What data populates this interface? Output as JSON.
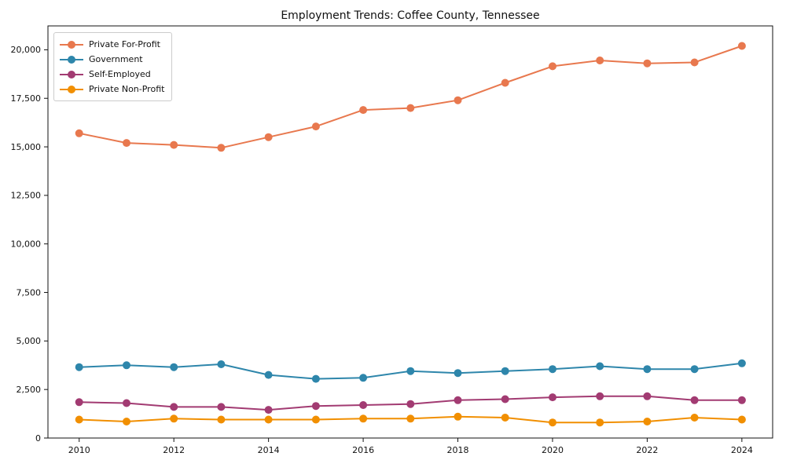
{
  "figure": {
    "title": "Employment Trends: Coffee County, Tennessee"
  },
  "chart_data": {
    "type": "line",
    "title": "Employment Trends: Coffee County, Tennessee",
    "xlabel": "",
    "ylabel": "",
    "grid": false,
    "legend_position": "upper-left",
    "marker": "circle",
    "x": [
      2010,
      2011,
      2012,
      2013,
      2014,
      2015,
      2016,
      2017,
      2018,
      2019,
      2020,
      2021,
      2022,
      2023,
      2024
    ],
    "x_ticks": [
      2010,
      2012,
      2014,
      2016,
      2018,
      2020,
      2022,
      2024
    ],
    "x_tick_labels": [
      "2010",
      "2012",
      "2014",
      "2016",
      "2018",
      "2020",
      "2022",
      "2024"
    ],
    "y_ticks": [
      0,
      2500,
      5000,
      7500,
      10000,
      12500,
      15000,
      17500,
      20000
    ],
    "y_tick_labels": [
      "0",
      "2,500",
      "5,000",
      "7,500",
      "10,000",
      "12,500",
      "15,000",
      "17,500",
      "20,000"
    ],
    "xlim": [
      2009.34,
      2024.65
    ],
    "ylim": [
      0,
      21230
    ],
    "series": [
      {
        "name": "Private For-Profit",
        "color": "#e8784e",
        "values": [
          15700,
          15200,
          15100,
          14950,
          15500,
          16050,
          16900,
          17000,
          17400,
          18300,
          19150,
          19450,
          19300,
          19350,
          20200
        ]
      },
      {
        "name": "Government",
        "color": "#2e86ab",
        "values": [
          3650,
          3750,
          3650,
          3800,
          3250,
          3050,
          3100,
          3450,
          3350,
          3450,
          3550,
          3700,
          3550,
          3550,
          3850
        ]
      },
      {
        "name": "Self-Employed",
        "color": "#a23b72",
        "values": [
          1850,
          1800,
          1600,
          1600,
          1450,
          1650,
          1700,
          1750,
          1950,
          2000,
          2100,
          2150,
          2150,
          1950,
          1950
        ]
      },
      {
        "name": "Private Non-Profit",
        "color": "#f18f01",
        "values": [
          950,
          850,
          1000,
          950,
          950,
          950,
          1000,
          1000,
          1100,
          1050,
          800,
          800,
          850,
          1050,
          950
        ]
      }
    ]
  }
}
